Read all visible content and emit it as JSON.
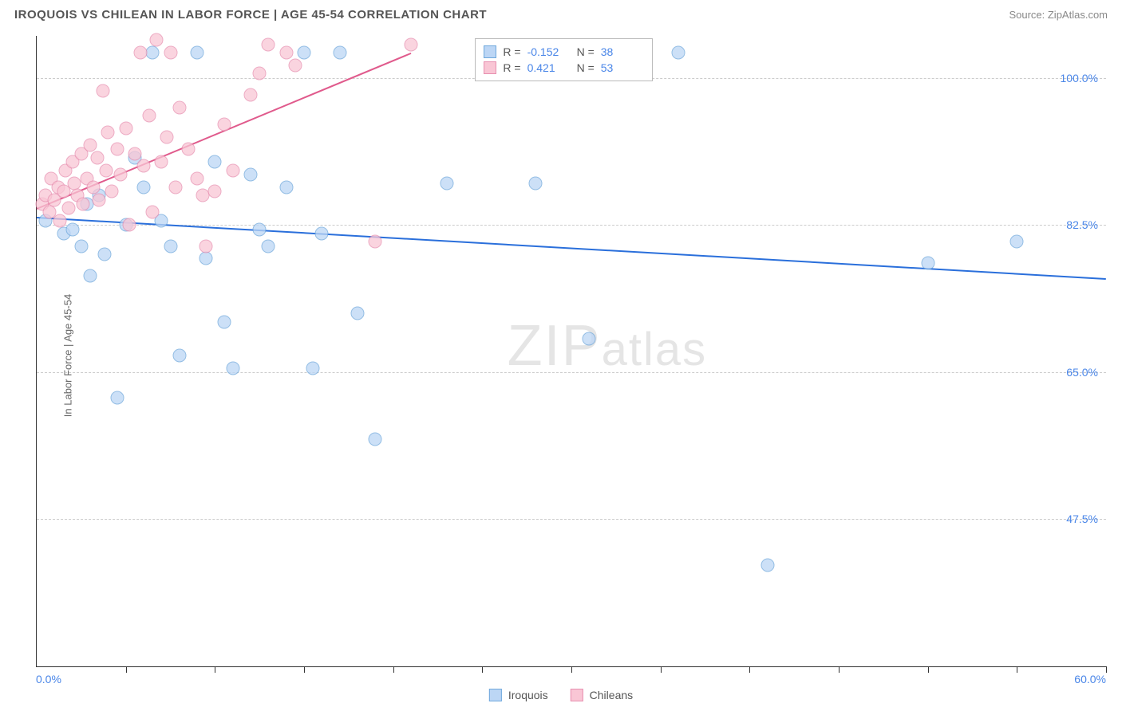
{
  "header": {
    "title": "IROQUOIS VS CHILEAN IN LABOR FORCE | AGE 45-54 CORRELATION CHART",
    "source": "Source: ZipAtlas.com"
  },
  "axes": {
    "y_label": "In Labor Force | Age 45-54",
    "x_min_label": "0.0%",
    "x_max_label": "60.0%",
    "xlim": [
      0,
      60
    ],
    "ylim": [
      30,
      105
    ],
    "y_ticks": [
      {
        "v": 47.5,
        "label": "47.5%"
      },
      {
        "v": 65.0,
        "label": "65.0%"
      },
      {
        "v": 82.5,
        "label": "82.5%"
      },
      {
        "v": 100.0,
        "label": "100.0%"
      }
    ],
    "x_tick_positions": [
      5,
      10,
      15,
      20,
      25,
      30,
      35,
      40,
      45,
      50,
      55,
      60
    ],
    "grid_color": "#cccccc",
    "tick_color": "#4a86e8"
  },
  "watermark": {
    "text_pre": "ZIP",
    "text_post": "atlas"
  },
  "series": [
    {
      "name": "Iroquois",
      "fill": "#bcd6f5",
      "stroke": "#6fa8dc",
      "line_color": "#2a6fdb",
      "R": "-0.152",
      "N": "38",
      "trend": {
        "x1": 0,
        "y1": 83.5,
        "x2": 60,
        "y2": 76.2
      },
      "points": [
        [
          0.5,
          83
        ],
        [
          1.5,
          81.5
        ],
        [
          2,
          82
        ],
        [
          2.5,
          80
        ],
        [
          2.8,
          85
        ],
        [
          3,
          76.5
        ],
        [
          3.5,
          86
        ],
        [
          3.8,
          79
        ],
        [
          4.5,
          62
        ],
        [
          5,
          82.5
        ],
        [
          5.5,
          90.5
        ],
        [
          6,
          87
        ],
        [
          6.5,
          103
        ],
        [
          7,
          83
        ],
        [
          7.5,
          80
        ],
        [
          8,
          67
        ],
        [
          9,
          103
        ],
        [
          9.5,
          78.5
        ],
        [
          10,
          90
        ],
        [
          10.5,
          71
        ],
        [
          11,
          65.5
        ],
        [
          12,
          88.5
        ],
        [
          12.5,
          82
        ],
        [
          13,
          80
        ],
        [
          14,
          87
        ],
        [
          15,
          103
        ],
        [
          15.5,
          65.5
        ],
        [
          16,
          81.5
        ],
        [
          17,
          103
        ],
        [
          18,
          72
        ],
        [
          19,
          57
        ],
        [
          23,
          87.5
        ],
        [
          28,
          87.5
        ],
        [
          31,
          69
        ],
        [
          36,
          103
        ],
        [
          41,
          42
        ],
        [
          50,
          78
        ],
        [
          55,
          80.5
        ]
      ]
    },
    {
      "name": "Chileans",
      "fill": "#f9c6d5",
      "stroke": "#e78fb0",
      "line_color": "#e05a8c",
      "R": "0.421",
      "N": "53",
      "trend": {
        "x1": 0,
        "y1": 84.5,
        "x2": 21,
        "y2": 103
      },
      "points": [
        [
          0.3,
          85
        ],
        [
          0.5,
          86
        ],
        [
          0.7,
          84
        ],
        [
          0.8,
          88
        ],
        [
          1,
          85.5
        ],
        [
          1.2,
          87
        ],
        [
          1.3,
          83
        ],
        [
          1.5,
          86.5
        ],
        [
          1.6,
          89
        ],
        [
          1.8,
          84.5
        ],
        [
          2,
          90
        ],
        [
          2.1,
          87.5
        ],
        [
          2.3,
          86
        ],
        [
          2.5,
          91
        ],
        [
          2.6,
          85
        ],
        [
          2.8,
          88
        ],
        [
          3,
          92
        ],
        [
          3.2,
          87
        ],
        [
          3.4,
          90.5
        ],
        [
          3.5,
          85.5
        ],
        [
          3.7,
          98.5
        ],
        [
          3.9,
          89
        ],
        [
          4,
          93.5
        ],
        [
          4.2,
          86.5
        ],
        [
          4.5,
          91.5
        ],
        [
          4.7,
          88.5
        ],
        [
          5,
          94
        ],
        [
          5.2,
          82.5
        ],
        [
          5.5,
          91
        ],
        [
          5.8,
          103
        ],
        [
          6,
          89.5
        ],
        [
          6.3,
          95.5
        ],
        [
          6.5,
          84
        ],
        [
          6.7,
          104.5
        ],
        [
          7,
          90
        ],
        [
          7.3,
          93
        ],
        [
          7.5,
          103
        ],
        [
          7.8,
          87
        ],
        [
          8,
          96.5
        ],
        [
          8.5,
          91.5
        ],
        [
          9,
          88
        ],
        [
          9.3,
          86
        ],
        [
          9.5,
          80
        ],
        [
          10,
          86.5
        ],
        [
          10.5,
          94.5
        ],
        [
          11,
          89
        ],
        [
          12,
          98
        ],
        [
          12.5,
          100.5
        ],
        [
          13,
          104
        ],
        [
          14,
          103
        ],
        [
          14.5,
          101.5
        ],
        [
          19,
          80.5
        ],
        [
          21,
          104
        ]
      ]
    }
  ],
  "legend": {
    "items": [
      {
        "label": "Iroquois",
        "fill": "#bcd6f5",
        "stroke": "#6fa8dc"
      },
      {
        "label": "Chileans",
        "fill": "#f9c6d5",
        "stroke": "#e78fb0"
      }
    ]
  },
  "stats_box": {
    "labels": {
      "R": "R =",
      "N": "N ="
    }
  }
}
